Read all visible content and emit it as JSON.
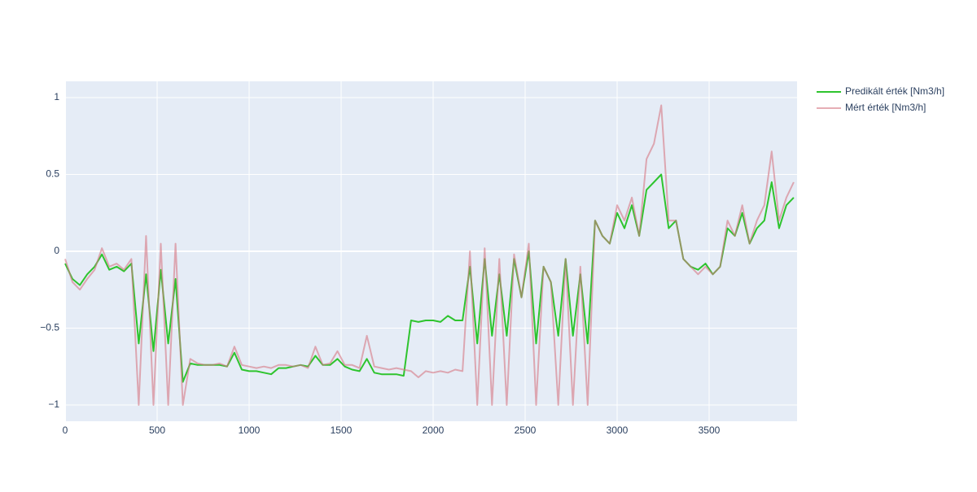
{
  "chart_data": {
    "type": "line",
    "x": [
      0,
      40,
      80,
      120,
      160,
      200,
      240,
      280,
      320,
      360,
      400,
      440,
      480,
      520,
      560,
      600,
      640,
      680,
      720,
      760,
      800,
      840,
      880,
      920,
      960,
      1000,
      1040,
      1080,
      1120,
      1160,
      1200,
      1240,
      1280,
      1320,
      1360,
      1400,
      1440,
      1480,
      1520,
      1560,
      1600,
      1640,
      1680,
      1720,
      1760,
      1800,
      1840,
      1880,
      1920,
      1960,
      2000,
      2040,
      2080,
      2120,
      2160,
      2200,
      2240,
      2280,
      2320,
      2360,
      2400,
      2440,
      2480,
      2520,
      2560,
      2600,
      2640,
      2680,
      2720,
      2760,
      2800,
      2840,
      2880,
      2920,
      2960,
      3000,
      3040,
      3080,
      3120,
      3160,
      3200,
      3240,
      3280,
      3320,
      3360,
      3400,
      3440,
      3480,
      3520,
      3560,
      3600,
      3640,
      3680,
      3720,
      3760,
      3800,
      3840,
      3880,
      3920,
      3960
    ],
    "series": [
      {
        "name": "Predikált érték [Nm3/h]",
        "color": "#2ec42e",
        "values": [
          -0.08,
          -0.18,
          -0.22,
          -0.15,
          -0.1,
          -0.02,
          -0.12,
          -0.1,
          -0.13,
          -0.08,
          -0.6,
          -0.15,
          -0.65,
          -0.12,
          -0.6,
          -0.18,
          -0.85,
          -0.73,
          -0.74,
          -0.74,
          -0.74,
          -0.74,
          -0.75,
          -0.66,
          -0.77,
          -0.78,
          -0.78,
          -0.79,
          -0.8,
          -0.76,
          -0.76,
          -0.75,
          -0.74,
          -0.75,
          -0.68,
          -0.74,
          -0.74,
          -0.7,
          -0.75,
          -0.77,
          -0.78,
          -0.7,
          -0.79,
          -0.8,
          -0.8,
          -0.8,
          -0.81,
          -0.45,
          -0.46,
          -0.45,
          -0.45,
          -0.46,
          -0.42,
          -0.45,
          -0.45,
          -0.1,
          -0.6,
          -0.05,
          -0.55,
          -0.15,
          -0.55,
          -0.05,
          -0.3,
          0.0,
          -0.6,
          -0.1,
          -0.2,
          -0.55,
          -0.05,
          -0.55,
          -0.15,
          -0.6,
          0.2,
          0.1,
          0.05,
          0.25,
          0.15,
          0.3,
          0.1,
          0.4,
          0.45,
          0.5,
          0.15,
          0.2,
          -0.05,
          -0.1,
          -0.12,
          -0.08,
          -0.15,
          -0.1,
          0.15,
          0.1,
          0.25,
          0.05,
          0.15,
          0.2,
          0.45,
          0.15,
          0.3,
          0.35
        ]
      },
      {
        "name": "Mért érték [Nm3/h]",
        "color": "rgba(214,120,132,0.6)",
        "values": [
          -0.05,
          -0.2,
          -0.25,
          -0.18,
          -0.12,
          0.02,
          -0.1,
          -0.08,
          -0.12,
          -0.05,
          -1.0,
          0.1,
          -1.0,
          0.05,
          -1.0,
          0.05,
          -1.0,
          -0.7,
          -0.73,
          -0.74,
          -0.74,
          -0.73,
          -0.75,
          -0.62,
          -0.74,
          -0.75,
          -0.76,
          -0.75,
          -0.76,
          -0.74,
          -0.74,
          -0.75,
          -0.74,
          -0.76,
          -0.62,
          -0.74,
          -0.73,
          -0.65,
          -0.74,
          -0.74,
          -0.76,
          -0.55,
          -0.75,
          -0.76,
          -0.77,
          -0.76,
          -0.77,
          -0.78,
          -0.82,
          -0.78,
          -0.79,
          -0.78,
          -0.79,
          -0.77,
          -0.78,
          0.0,
          -1.0,
          0.02,
          -1.0,
          -0.05,
          -1.0,
          -0.02,
          -0.3,
          0.05,
          -1.0,
          -0.1,
          -0.2,
          -1.0,
          -0.05,
          -1.0,
          -0.1,
          -1.0,
          0.2,
          0.1,
          0.05,
          0.3,
          0.2,
          0.35,
          0.1,
          0.6,
          0.7,
          0.95,
          0.2,
          0.2,
          -0.05,
          -0.1,
          -0.15,
          -0.1,
          -0.15,
          -0.1,
          0.2,
          0.1,
          0.3,
          0.05,
          0.2,
          0.3,
          0.65,
          0.2,
          0.35,
          0.45
        ]
      }
    ],
    "xlim": [
      0,
      3978
    ],
    "xticks": [
      0,
      500,
      1000,
      1500,
      2000,
      2500,
      3000,
      3500
    ],
    "ylim": [
      -1.106,
      1.106
    ],
    "yticks": [
      {
        "value": -1,
        "label": "−1"
      },
      {
        "value": -0.5,
        "label": "−0.5"
      },
      0,
      0.5,
      1
    ],
    "grid": true,
    "legend": "top-right"
  }
}
